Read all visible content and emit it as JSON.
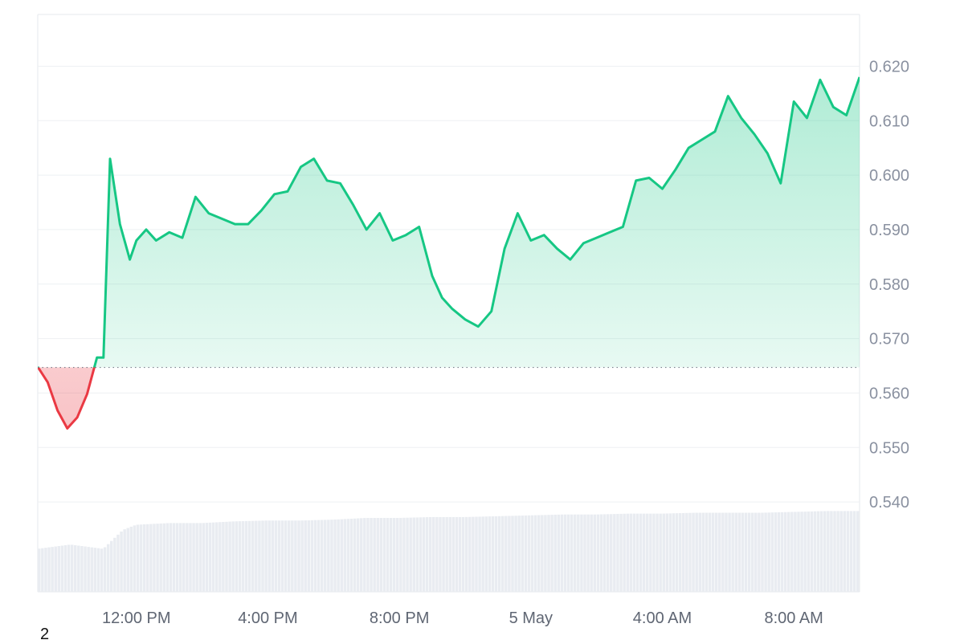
{
  "chart_data": {
    "type": "area",
    "title": "",
    "xlabel": "",
    "ylabel": "",
    "ylim": [
      0.5235,
      0.6295
    ],
    "y_ticks": [
      "0.620",
      "0.610",
      "0.600",
      "0.590",
      "0.580",
      "0.570",
      "0.560",
      "0.550",
      "0.540"
    ],
    "x_ticks": [
      "12:00 PM",
      "4:00 PM",
      "8:00 PM",
      "5 May",
      "4:00 AM",
      "8:00 AM"
    ],
    "x_tick_hours": [
      12,
      16,
      20,
      24,
      28,
      32
    ],
    "x_range_hours": [
      9.0,
      34.0
    ],
    "baseline": 0.5647,
    "grid": true,
    "legend": "none",
    "colors": {
      "up": "#16c784",
      "down": "#ea3943",
      "volume": "#e9ecf1",
      "grid": "#eef0f3"
    },
    "series": [
      {
        "x_hours": [
          9.0,
          9.3,
          9.6,
          9.9,
          10.2,
          10.5,
          10.8,
          11.0,
          11.2,
          11.5,
          11.8,
          12.0,
          12.3,
          12.6,
          13.0,
          13.4,
          13.8,
          14.2,
          14.6,
          15.0,
          15.4,
          15.8,
          16.2,
          16.6,
          17.0,
          17.4,
          17.8,
          18.2,
          18.6,
          19.0,
          19.4,
          19.8,
          20.2,
          20.6,
          21.0,
          21.3,
          21.6,
          22.0,
          22.4,
          22.8,
          23.2,
          23.6,
          24.0,
          24.4,
          24.8,
          25.2,
          25.6,
          26.0,
          26.4,
          26.8,
          27.2,
          27.6,
          28.0,
          28.4,
          28.8,
          29.2,
          29.6,
          30.0,
          30.4,
          30.8,
          31.2,
          31.6,
          32.0,
          32.4,
          32.8,
          33.2,
          33.6,
          34.0
        ],
        "values": [
          0.5648,
          0.562,
          0.5568,
          0.5535,
          0.5555,
          0.5598,
          0.5665,
          0.5665,
          0.603,
          0.591,
          0.5845,
          0.588,
          0.59,
          0.588,
          0.5895,
          0.5885,
          0.596,
          0.593,
          0.592,
          0.591,
          0.591,
          0.5935,
          0.5965,
          0.597,
          0.6015,
          0.603,
          0.599,
          0.5985,
          0.5945,
          0.59,
          0.593,
          0.588,
          0.589,
          0.5905,
          0.5815,
          0.5775,
          0.5755,
          0.5735,
          0.5722,
          0.575,
          0.5865,
          0.593,
          0.588,
          0.589,
          0.5865,
          0.5845,
          0.5875,
          0.5885,
          0.5895,
          0.5905,
          0.599,
          0.5995,
          0.5975,
          0.601,
          0.605,
          0.6065,
          0.608,
          0.6145,
          0.6105,
          0.6075,
          0.604,
          0.5985,
          0.6135,
          0.6105,
          0.6175,
          0.6125,
          0.611,
          0.618
        ]
      }
    ],
    "volume": {
      "x_hours": [
        9.0,
        10.0,
        11.0,
        11.6,
        12.0,
        13.0,
        14.0,
        15.0,
        16.0,
        17.0,
        18.0,
        19.0,
        20.0,
        21.0,
        22.0,
        23.0,
        24.0,
        25.0,
        26.0,
        27.0,
        28.0,
        29.0,
        30.0,
        31.0,
        32.0,
        33.0,
        34.0
      ],
      "values": [
        0.5,
        0.55,
        0.5,
        0.72,
        0.78,
        0.8,
        0.8,
        0.82,
        0.83,
        0.83,
        0.84,
        0.86,
        0.86,
        0.87,
        0.87,
        0.88,
        0.89,
        0.9,
        0.9,
        0.91,
        0.91,
        0.92,
        0.92,
        0.92,
        0.93,
        0.94,
        0.94
      ]
    }
  },
  "footnote": "2"
}
